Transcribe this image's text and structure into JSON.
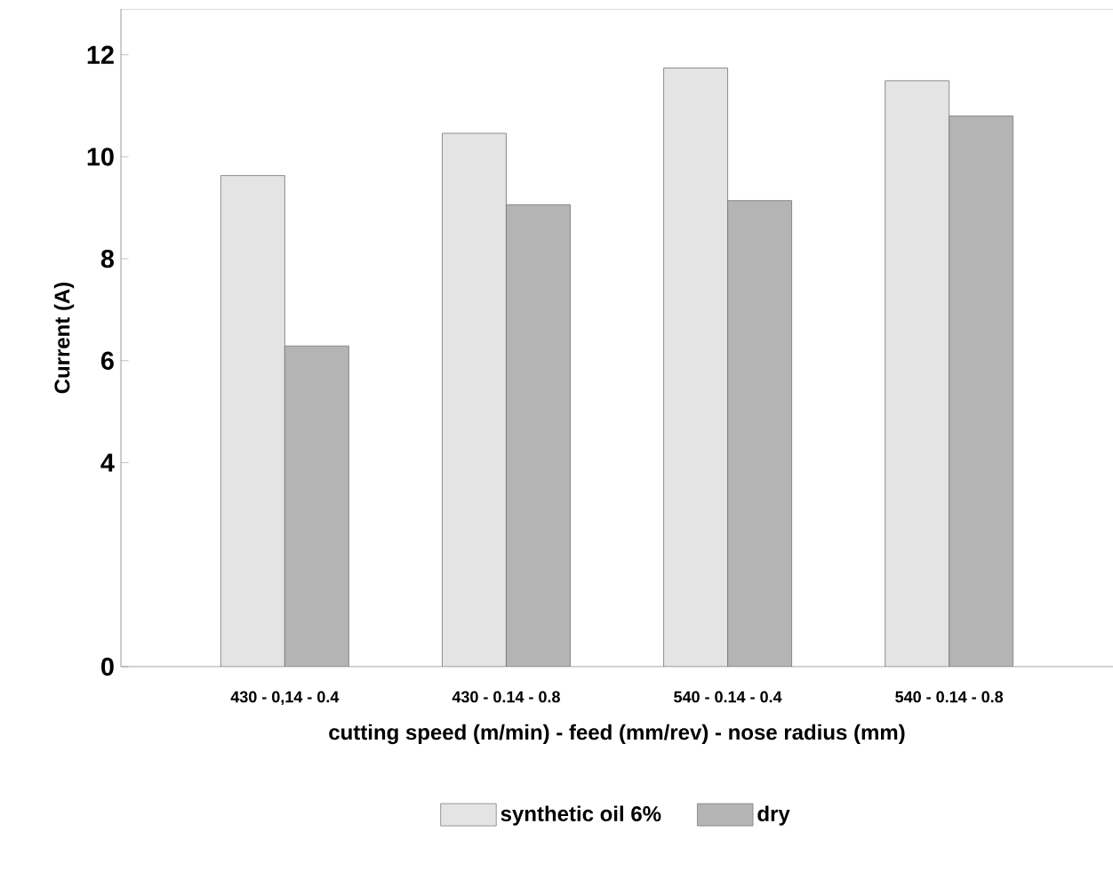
{
  "chart_data": {
    "type": "bar",
    "ylabel": "Current (A)",
    "xlabel": "cutting speed (m/min) - feed (mm/rev) - nose radius (mm)",
    "categories": [
      "430 - 0,14 - 0.4",
      "430 - 0.14 - 0.8",
      "540 - 0.14 - 0.4",
      "540 - 0.14 - 0.8"
    ],
    "series": [
      {
        "name": "synthetic oil 6%",
        "color": "#e4e4e4",
        "values": [
          9.63,
          10.46,
          11.74,
          11.49
        ]
      },
      {
        "name": "dry",
        "color": "#b4b4b4",
        "values": [
          6.29,
          9.06,
          9.14,
          10.8
        ]
      }
    ],
    "ylim": [
      0,
      12.9
    ],
    "yticks": [
      0,
      4,
      6,
      8,
      10,
      12
    ],
    "legend": "bottom",
    "grid": false
  }
}
